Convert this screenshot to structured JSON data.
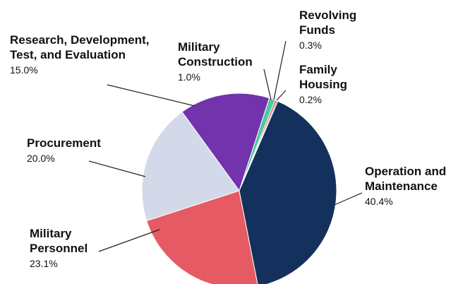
{
  "chart_data": {
    "type": "pie",
    "categories": [
      "Operation and Maintenance",
      "Military Personnel",
      "Procurement",
      "Research, Development, Test, and Evaluation",
      "Military Construction",
      "Revolving Funds",
      "Family Housing"
    ],
    "values": [
      40.4,
      23.1,
      20.0,
      15.0,
      1.0,
      0.3,
      0.2
    ],
    "value_labels": [
      "40.4%",
      "23.1%",
      "20.0%",
      "15.0%",
      "1.0%",
      "0.3%",
      "0.2%"
    ],
    "colors": [
      "#14305c",
      "#e65a63",
      "#d3d9e9",
      "#7233ad",
      "#4ccaa0",
      "#e0573c",
      "#3a4b72"
    ]
  }
}
